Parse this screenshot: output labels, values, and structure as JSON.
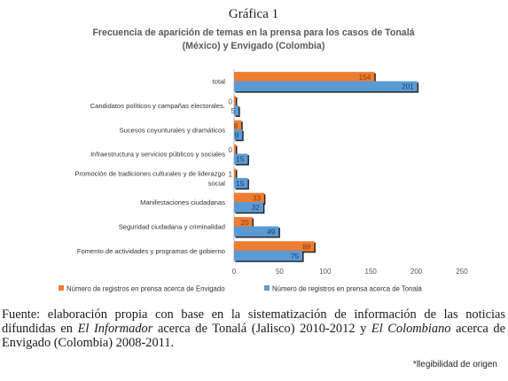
{
  "figure_label": "Gráfica 1",
  "chart_data": {
    "type": "bar",
    "orientation": "horizontal",
    "title": "Frecuencia de aparición de temas en la prensa para los casos de Tonalá (México) y Envigado (Colombia)",
    "title_lines": [
      "Frecuencia de aparición de temas en la prensa para los casos de Tonalá",
      "(México) y Envigado (Colombia)"
    ],
    "categories": [
      "total",
      "Candidatos políticos y campañas electorales.",
      "Sucesos coyunturales y dramáticos",
      "Infraestructura y servicios públicos y sociales",
      "Promoción de tradiciones culturales y de liderazgo social",
      "Manifestaciones ciudadanas",
      "Seguridad ciudadana y criminalidad",
      "Fomento de actividades y programas de gobierno"
    ],
    "series": [
      {
        "name": "Número de registros en prensa acerca de Envigado",
        "color": "#ed7d31",
        "values": [
          154,
          0,
          8,
          0,
          1,
          33,
          20,
          88
        ]
      },
      {
        "name": "Número de registros en prensa acerca de Tonalá",
        "color": "#5b9bd5",
        "values": [
          201,
          5,
          9,
          15,
          15,
          32,
          49,
          75
        ]
      }
    ],
    "data_labels": [
      [
        "154",
        "0",
        "8",
        "0",
        "1",
        "33",
        "20",
        "88"
      ],
      [
        "201",
        "5",
        "9",
        "15",
        "15",
        "32",
        "49",
        "75"
      ]
    ],
    "xlim": [
      0,
      250
    ],
    "xticks": [
      0,
      50,
      100,
      150,
      200,
      250
    ],
    "xtick_labels": [
      "0",
      "50",
      "100",
      "150",
      "200",
      "250"
    ],
    "grid": false,
    "legend_position": "bottom"
  },
  "source": {
    "prefix": "Fuente: elaboración propia con base en la sistematización de información de las noticias difundidas en ",
    "paper1": "El Informador",
    "middle": " acerca de Tonalá (Jalisco) 2010-2012 y ",
    "paper2": "El Colombiano",
    "suffix": " acerca de Envigado (Colombia) 2008-2011."
  },
  "legibility_note": "*llegibilidad de origen"
}
